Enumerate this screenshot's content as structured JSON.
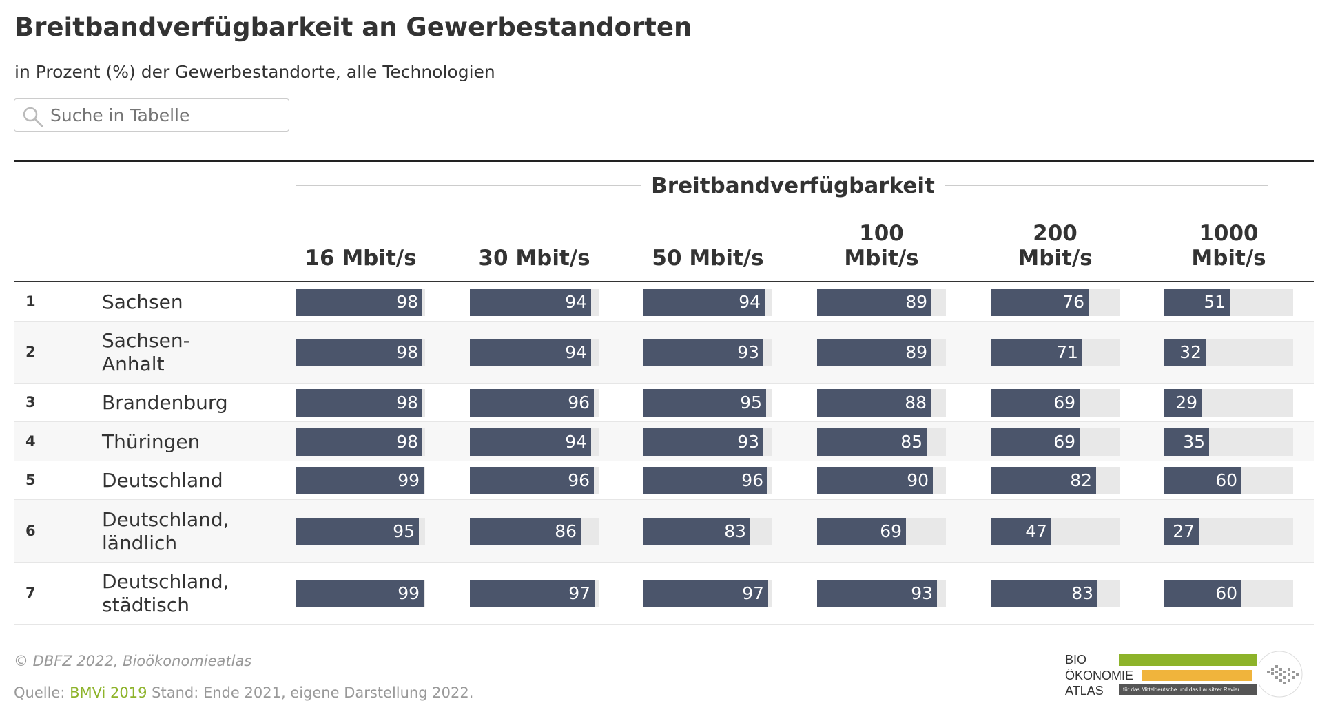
{
  "title": "Breitbandverfügbarkeit an Gewerbestandorten",
  "subtitle": "in Prozent (%) der Gewerbestandorte, alle Technologien",
  "search": {
    "placeholder": "Suche in Tabelle",
    "icon": "search-icon"
  },
  "column_group": "Breitbandverfügbarkeit",
  "columns": [
    {
      "line1": "",
      "line2": "16 Mbit/s"
    },
    {
      "line1": "",
      "line2": "30 Mbit/s"
    },
    {
      "line1": "",
      "line2": "50 Mbit/s"
    },
    {
      "line1": "100",
      "line2": "Mbit/s"
    },
    {
      "line1": "200",
      "line2": "Mbit/s"
    },
    {
      "line1": "1000",
      "line2": "Mbit/s"
    }
  ],
  "chart_data": {
    "type": "table",
    "title": "Breitbandverfügbarkeit an Gewerbestandorten",
    "subtitle": "in Prozent (%) der Gewerbestandorte, alle Technologien",
    "column_group": "Breitbandverfügbarkeit",
    "columns": [
      "16 Mbit/s",
      "30 Mbit/s",
      "50 Mbit/s",
      "100 Mbit/s",
      "200 Mbit/s",
      "1000 Mbit/s"
    ],
    "value_range": [
      0,
      100
    ],
    "rows": [
      {
        "rank": "1",
        "name_lines": [
          "Sachsen"
        ],
        "values": [
          98,
          94,
          94,
          89,
          76,
          51
        ]
      },
      {
        "rank": "2",
        "name_lines": [
          "Sachsen-",
          "Anhalt"
        ],
        "values": [
          98,
          94,
          93,
          89,
          71,
          32
        ]
      },
      {
        "rank": "3",
        "name_lines": [
          "Brandenburg"
        ],
        "values": [
          98,
          96,
          95,
          88,
          69,
          29
        ]
      },
      {
        "rank": "4",
        "name_lines": [
          "Thüringen"
        ],
        "values": [
          98,
          94,
          93,
          85,
          69,
          35
        ]
      },
      {
        "rank": "5",
        "name_lines": [
          "Deutschland"
        ],
        "values": [
          99,
          96,
          96,
          90,
          82,
          60
        ]
      },
      {
        "rank": "6",
        "name_lines": [
          "Deutschland,",
          "ländlich"
        ],
        "values": [
          95,
          86,
          83,
          69,
          47,
          27
        ]
      },
      {
        "rank": "7",
        "name_lines": [
          "Deutschland,",
          "städtisch"
        ],
        "values": [
          99,
          97,
          97,
          93,
          83,
          60
        ]
      }
    ]
  },
  "colors": {
    "bar": "#4b556b",
    "track": "#e8e8e8",
    "link": "#8db32a",
    "logo_green": "#8db32a",
    "logo_orange": "#f0b43c"
  },
  "footer": {
    "credit": "© DBFZ 2022, Bioökonomieatlas",
    "source_prefix": "Quelle: ",
    "source_link": "BMVi 2019",
    "source_suffix": " Stand: Ende 2021, eigene Darstellung 2022."
  },
  "logo": {
    "line1": "BIO",
    "line2": "ÖKONOMIE",
    "line3": "ATLAS",
    "tagline": "für das Mitteldeutsche und das Lausitzer Revier"
  }
}
